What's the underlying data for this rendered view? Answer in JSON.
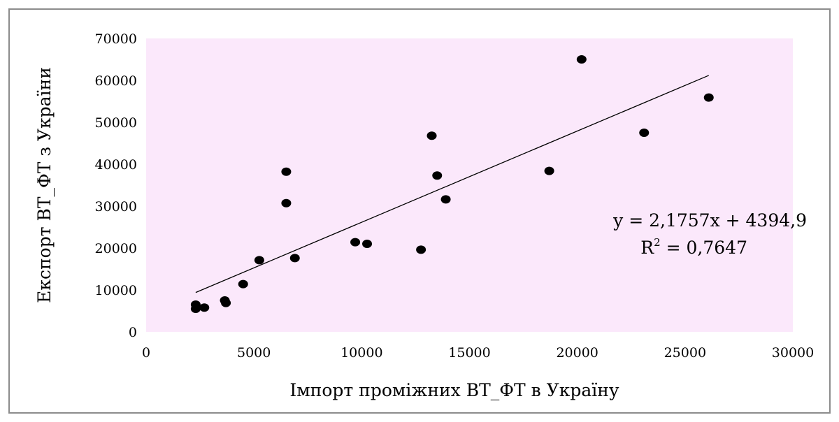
{
  "chart_data": {
    "type": "scatter",
    "title": "",
    "xlabel": "Імпорт проміжних ВТ_ФТ в Україну",
    "ylabel": "Експорт ВТ_ФТ з України",
    "xlim": [
      0,
      30000
    ],
    "ylim": [
      0,
      70000
    ],
    "x_ticks": [
      0,
      5000,
      10000,
      15000,
      20000,
      25000,
      30000
    ],
    "y_ticks": [
      0,
      10000,
      20000,
      30000,
      40000,
      50000,
      60000,
      70000
    ],
    "x_tick_labels": [
      "0",
      "5000",
      "10000",
      "15000",
      "20000",
      "25000",
      "30000"
    ],
    "y_tick_labels": [
      "0",
      "10000",
      "20000",
      "30000",
      "40000",
      "50000",
      "60000",
      "70000"
    ],
    "grid": false,
    "legend": "none",
    "plot_background": "#fbe8fb",
    "marker_color": "#000000",
    "series": [
      {
        "points": [
          {
            "x": 2300,
            "y": 6500
          },
          {
            "x": 2300,
            "y": 5500
          },
          {
            "x": 2700,
            "y": 5800
          },
          {
            "x": 3650,
            "y": 7500
          },
          {
            "x": 3700,
            "y": 6900
          },
          {
            "x": 4500,
            "y": 11400
          },
          {
            "x": 5250,
            "y": 17100
          },
          {
            "x": 6500,
            "y": 38200
          },
          {
            "x": 6500,
            "y": 30700
          },
          {
            "x": 6900,
            "y": 17600
          },
          {
            "x": 9700,
            "y": 21400
          },
          {
            "x": 10250,
            "y": 21000
          },
          {
            "x": 12750,
            "y": 19600
          },
          {
            "x": 13250,
            "y": 46800
          },
          {
            "x": 13500,
            "y": 37300
          },
          {
            "x": 13900,
            "y": 31600
          },
          {
            "x": 18700,
            "y": 38400
          },
          {
            "x": 20200,
            "y": 65000
          },
          {
            "x": 23100,
            "y": 47500
          },
          {
            "x": 26100,
            "y": 55900
          }
        ]
      }
    ],
    "trendline": {
      "type": "linear",
      "slope": 2.1757,
      "intercept": 4394.9,
      "x_range": [
        2300,
        26100
      ],
      "equation_text": "y = 2,1757x + 4394,9",
      "r2_prefix": "R",
      "r2_superscript": "2",
      "r2_suffix": " = 0,7647"
    }
  }
}
